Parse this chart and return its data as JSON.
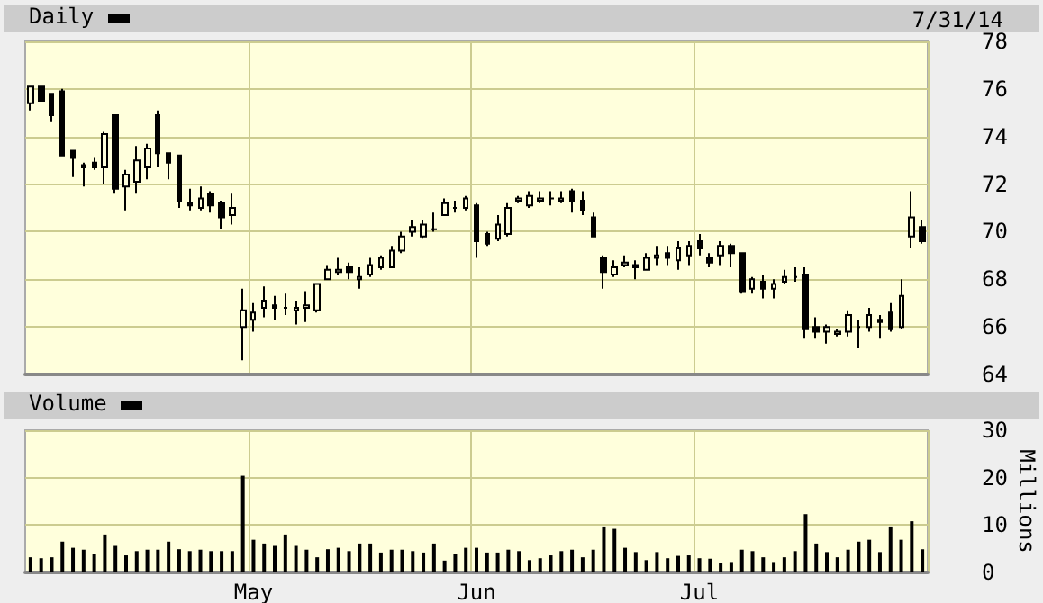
{
  "chart_data": [
    {
      "type": "candlestick",
      "title": "Daily",
      "annotations": [
        "7/31/14"
      ],
      "color": "#000000",
      "categories": [
        null,
        null,
        null,
        null,
        null,
        null,
        null,
        null,
        null,
        null,
        null,
        null,
        null,
        null,
        null,
        null,
        null,
        null,
        null,
        null,
        null,
        null,
        null,
        null,
        null,
        null,
        null,
        null,
        null,
        null,
        null,
        null,
        null,
        null,
        null,
        null,
        null,
        null,
        null,
        null,
        null,
        null,
        null,
        null,
        null,
        null,
        null,
        null,
        null,
        null,
        null,
        null,
        null,
        null,
        null,
        null,
        null,
        null,
        null,
        null,
        null,
        null,
        null,
        null,
        null,
        null,
        null,
        null,
        null,
        null,
        null,
        null,
        null,
        null,
        null,
        null,
        null,
        null,
        null,
        null,
        null,
        null,
        null,
        null,
        null
      ],
      "ohlc": [
        [
          75.4,
          76.1,
          75.1,
          76.1
        ],
        [
          76.1,
          76.1,
          75.5,
          75.5
        ],
        [
          75.8,
          75.8,
          74.6,
          74.9
        ],
        [
          75.9,
          76.0,
          73.2,
          73.2
        ],
        [
          73.4,
          73.4,
          72.3,
          73.1
        ],
        [
          72.7,
          72.9,
          71.9,
          72.8
        ],
        [
          72.9,
          73.1,
          72.6,
          72.7
        ],
        [
          72.7,
          74.2,
          72.0,
          74.1
        ],
        [
          74.9,
          74.9,
          71.6,
          71.8
        ],
        [
          71.9,
          72.6,
          70.9,
          72.4
        ],
        [
          72.1,
          73.6,
          71.6,
          73.0
        ],
        [
          72.7,
          73.7,
          72.2,
          73.5
        ],
        [
          74.9,
          75.1,
          72.7,
          73.3
        ],
        [
          73.3,
          73.3,
          72.2,
          72.9
        ],
        [
          73.2,
          73.2,
          71.0,
          71.3
        ],
        [
          71.2,
          71.8,
          70.9,
          71.1
        ],
        [
          71.0,
          71.9,
          70.9,
          71.4
        ],
        [
          71.6,
          71.7,
          70.8,
          71.1
        ],
        [
          71.2,
          71.3,
          70.1,
          70.6
        ],
        [
          70.7,
          71.6,
          70.3,
          71.0
        ],
        [
          66.0,
          67.6,
          64.6,
          66.7
        ],
        [
          66.3,
          67.0,
          65.8,
          66.6
        ],
        [
          66.8,
          67.7,
          66.4,
          67.1
        ],
        [
          66.9,
          67.3,
          66.3,
          66.8
        ],
        [
          66.8,
          67.4,
          66.5,
          66.8
        ],
        [
          66.7,
          67.1,
          66.1,
          66.8
        ],
        [
          66.8,
          67.5,
          66.2,
          66.9
        ],
        [
          66.7,
          67.8,
          66.6,
          67.8
        ],
        [
          68.0,
          68.6,
          68.0,
          68.4
        ],
        [
          68.3,
          68.9,
          68.2,
          68.4
        ],
        [
          68.5,
          68.7,
          68.0,
          68.3
        ],
        [
          68.0,
          68.5,
          67.6,
          68.1
        ],
        [
          68.2,
          68.9,
          68.1,
          68.6
        ],
        [
          68.5,
          69.0,
          68.4,
          68.9
        ],
        [
          68.5,
          69.4,
          68.5,
          69.2
        ],
        [
          69.2,
          70.0,
          69.1,
          69.8
        ],
        [
          70.0,
          70.5,
          69.8,
          70.2
        ],
        [
          69.8,
          70.5,
          69.7,
          70.3
        ],
        [
          70.1,
          70.8,
          70.0,
          70.1
        ],
        [
          70.7,
          71.4,
          70.7,
          71.2
        ],
        [
          71.0,
          71.3,
          70.8,
          71.0
        ],
        [
          71.0,
          71.5,
          70.9,
          71.4
        ],
        [
          71.1,
          71.2,
          68.9,
          69.6
        ],
        [
          69.9,
          70.0,
          69.4,
          69.5
        ],
        [
          69.7,
          70.7,
          69.6,
          70.3
        ],
        [
          69.9,
          71.2,
          69.8,
          71.0
        ],
        [
          71.3,
          71.5,
          71.2,
          71.4
        ],
        [
          71.1,
          71.7,
          71.0,
          71.5
        ],
        [
          71.3,
          71.7,
          71.2,
          71.4
        ],
        [
          71.4,
          71.7,
          71.1,
          71.4
        ],
        [
          71.3,
          71.7,
          71.2,
          71.4
        ],
        [
          71.7,
          71.8,
          70.8,
          71.3
        ],
        [
          71.3,
          71.7,
          70.7,
          70.9
        ],
        [
          70.6,
          70.8,
          69.8,
          69.8
        ],
        [
          68.9,
          69.0,
          67.6,
          68.3
        ],
        [
          68.2,
          68.8,
          68.1,
          68.5
        ],
        [
          68.6,
          69.0,
          68.5,
          68.7
        ],
        [
          68.6,
          68.8,
          68.0,
          68.5
        ],
        [
          68.4,
          69.1,
          68.4,
          68.9
        ],
        [
          68.9,
          69.4,
          68.6,
          69.0
        ],
        [
          69.1,
          69.4,
          68.6,
          68.9
        ],
        [
          68.8,
          69.6,
          68.4,
          69.3
        ],
        [
          69.0,
          69.6,
          68.6,
          69.4
        ],
        [
          69.6,
          69.9,
          69.0,
          69.3
        ],
        [
          68.9,
          69.1,
          68.5,
          68.7
        ],
        [
          69.0,
          69.6,
          68.6,
          69.4
        ],
        [
          69.4,
          69.5,
          68.5,
          69.1
        ],
        [
          69.1,
          69.1,
          67.4,
          67.5
        ],
        [
          67.6,
          68.1,
          67.4,
          68.0
        ],
        [
          67.9,
          68.2,
          67.2,
          67.6
        ],
        [
          67.6,
          68.0,
          67.2,
          67.8
        ],
        [
          67.9,
          68.4,
          67.8,
          68.1
        ],
        [
          68.1,
          68.5,
          67.9,
          68.1
        ],
        [
          68.2,
          68.5,
          65.5,
          65.9
        ],
        [
          66.0,
          66.4,
          65.5,
          65.8
        ],
        [
          65.8,
          66.1,
          65.3,
          66.0
        ],
        [
          65.7,
          65.9,
          65.6,
          65.8
        ],
        [
          65.8,
          66.7,
          65.6,
          66.5
        ],
        [
          66.0,
          66.3,
          65.1,
          66.0
        ],
        [
          66.0,
          66.8,
          65.8,
          66.5
        ],
        [
          66.3,
          66.5,
          65.5,
          66.2
        ],
        [
          66.6,
          67.0,
          65.8,
          65.9
        ],
        [
          66.0,
          68.0,
          65.9,
          67.3
        ],
        [
          69.8,
          71.7,
          69.3,
          70.6
        ],
        [
          70.2,
          70.5,
          69.5,
          69.6
        ]
      ],
      "ylim": [
        64,
        78
      ],
      "yticks": [
        64,
        66,
        68,
        70,
        72,
        74,
        76,
        78
      ],
      "grid": true,
      "tick_labels": "y"
    },
    {
      "type": "bar",
      "title": "Volume",
      "ylabel": "Millions",
      "color": "#000000",
      "categories": [
        null,
        null,
        null,
        null,
        null,
        null,
        null,
        null,
        null,
        null,
        null,
        null,
        null,
        null,
        null,
        null,
        null,
        null,
        null,
        null,
        null,
        "May",
        null,
        null,
        null,
        null,
        null,
        null,
        null,
        null,
        null,
        null,
        null,
        null,
        null,
        null,
        null,
        null,
        null,
        null,
        null,
        null,
        "Jun",
        null,
        null,
        null,
        null,
        null,
        null,
        null,
        null,
        null,
        null,
        null,
        null,
        null,
        null,
        null,
        null,
        null,
        null,
        null,
        null,
        "Jul",
        null,
        null,
        null,
        null,
        null,
        null,
        null,
        null,
        null,
        null,
        null,
        null,
        null,
        null,
        null,
        null,
        null,
        null,
        null,
        null,
        null
      ],
      "values": [
        3.2,
        3.0,
        3.2,
        6.5,
        5.2,
        4.8,
        3.8,
        8.0,
        5.6,
        3.6,
        4.5,
        4.8,
        4.8,
        6.5,
        4.9,
        4.5,
        4.8,
        4.5,
        4.5,
        4.5,
        20.4,
        6.9,
        6.1,
        5.6,
        8.0,
        5.6,
        4.8,
        3.2,
        4.9,
        5.2,
        4.5,
        6.1,
        6.1,
        4.2,
        4.8,
        4.8,
        4.5,
        4.2,
        6.1,
        2.5,
        3.8,
        5.2,
        5.2,
        4.2,
        4.2,
        4.8,
        4.5,
        2.6,
        3.0,
        3.6,
        4.5,
        4.8,
        3.2,
        4.8,
        9.7,
        9.2,
        5.2,
        4.3,
        2.6,
        4.3,
        3.0,
        3.5,
        3.6,
        3.0,
        2.9,
        1.9,
        2.2,
        4.8,
        4.5,
        3.2,
        2.2,
        3.2,
        4.5,
        12.3,
        6.1,
        4.3,
        3.2,
        4.8,
        6.5,
        6.9,
        4.3,
        9.7,
        6.9,
        10.8,
        4.9
      ],
      "ylim": [
        0,
        30
      ],
      "yticks": [
        0,
        10,
        20,
        30
      ],
      "grid": true
    }
  ]
}
